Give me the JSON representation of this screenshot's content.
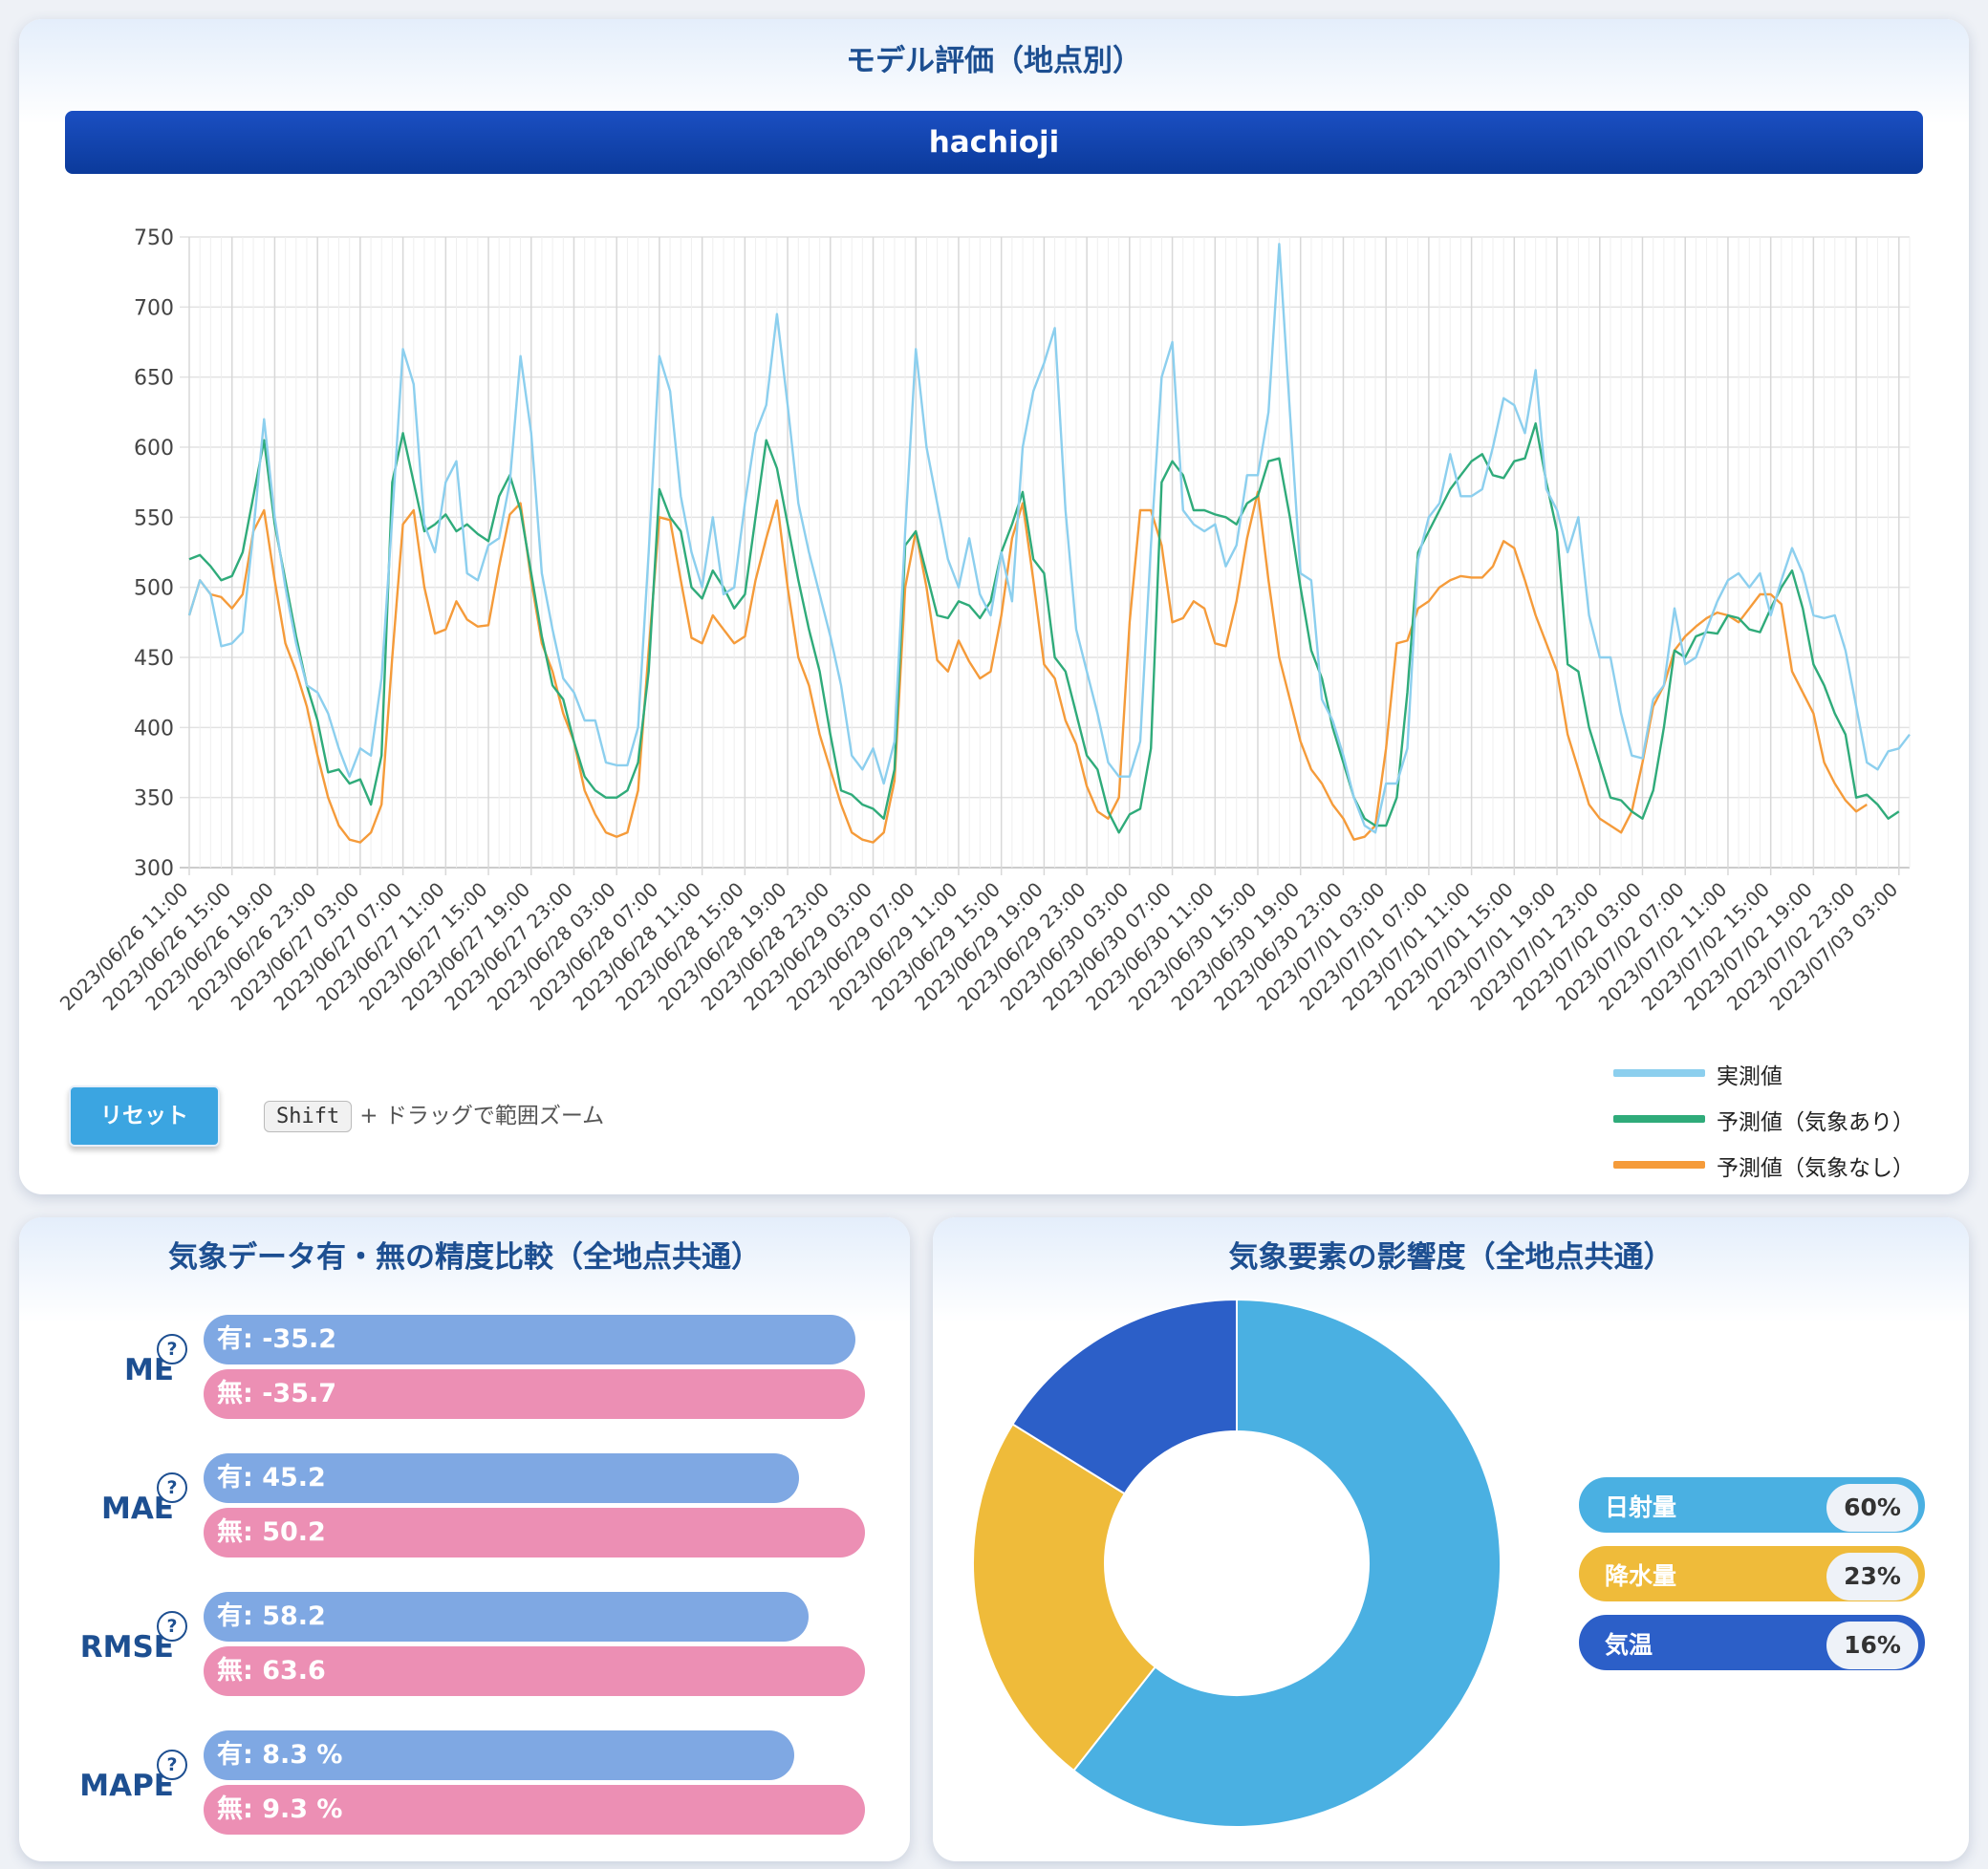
{
  "top_panel": {
    "title": "モデル評価（地点別）",
    "site": "hachioji",
    "reset_label": "リセット",
    "shift_key": "Shift",
    "zoom_hint": "+ ドラッグで範囲ズーム"
  },
  "chart_data": {
    "type": "line",
    "ylim": [
      300,
      750
    ],
    "yticks": [
      300,
      350,
      400,
      450,
      500,
      550,
      600,
      650,
      700,
      750
    ],
    "grid": true,
    "legend_position": "bottom-right",
    "start_time": "2023/06/26 11:00",
    "x_tick_labels": [
      "2023/06/26 11:00",
      "2023/06/26 15:00",
      "2023/06/26 19:00",
      "2023/06/26 23:00",
      "2023/06/27 03:00",
      "2023/06/27 07:00",
      "2023/06/27 11:00",
      "2023/06/27 15:00",
      "2023/06/27 19:00",
      "2023/06/27 23:00",
      "2023/06/28 03:00",
      "2023/06/28 07:00",
      "2023/06/28 11:00",
      "2023/06/28 15:00",
      "2023/06/28 19:00",
      "2023/06/28 23:00",
      "2023/06/29 03:00",
      "2023/06/29 07:00",
      "2023/06/29 11:00",
      "2023/06/29 15:00",
      "2023/06/29 19:00",
      "2023/06/29 23:00",
      "2023/06/30 03:00",
      "2023/06/30 07:00",
      "2023/06/30 11:00",
      "2023/06/30 15:00",
      "2023/06/30 19:00",
      "2023/06/30 23:00",
      "2023/07/01 03:00",
      "2023/07/01 07:00",
      "2023/07/01 11:00",
      "2023/07/01 15:00",
      "2023/07/01 19:00",
      "2023/07/01 23:00",
      "2023/07/02 03:00",
      "2023/07/02 07:00",
      "2023/07/02 11:00",
      "2023/07/02 15:00",
      "2023/07/02 19:00",
      "2023/07/02 23:00",
      "2023/07/03 03:00"
    ],
    "series": [
      {
        "name": "実測値",
        "color": "#8ccfee",
        "values": [
          480,
          505,
          495,
          458,
          460,
          468,
          540,
          620,
          550,
          500,
          460,
          430,
          425,
          410,
          385,
          365,
          385,
          380,
          435,
          550,
          670,
          645,
          545,
          525,
          575,
          590,
          510,
          505,
          530,
          535,
          575,
          665,
          610,
          510,
          470,
          435,
          425,
          405,
          405,
          375,
          373,
          373,
          400,
          525,
          665,
          640,
          565,
          525,
          500,
          550,
          495,
          500,
          560,
          610,
          630,
          695,
          630,
          560,
          525,
          495,
          465,
          430,
          380,
          370,
          385,
          360,
          390,
          540,
          670,
          600,
          560,
          520,
          500,
          535,
          495,
          480,
          525,
          490,
          600,
          640,
          660,
          685,
          555,
          470,
          440,
          410,
          375,
          365,
          365,
          390,
          530,
          650,
          675,
          555,
          545,
          540,
          545,
          515,
          530,
          580,
          580,
          625,
          745,
          625,
          510,
          505,
          420,
          405,
          380,
          350,
          330,
          325,
          360,
          360,
          385,
          520,
          550,
          560,
          595,
          565,
          565,
          570,
          600,
          635,
          630,
          610,
          655,
          570,
          555,
          525,
          550,
          480,
          450,
          450,
          410,
          380,
          378,
          420,
          430,
          485,
          445,
          450,
          470,
          490,
          505,
          510,
          500,
          510,
          480,
          505,
          528,
          510,
          480,
          478,
          480,
          455,
          415,
          375,
          370,
          383,
          385,
          395
        ]
      },
      {
        "name": "予測値（気象あり）",
        "color": "#2fab7a",
        "values": [
          520,
          523,
          515,
          505,
          508,
          525,
          565,
          605,
          545,
          505,
          465,
          430,
          405,
          368,
          370,
          360,
          363,
          345,
          380,
          575,
          610,
          575,
          540,
          545,
          552,
          540,
          545,
          538,
          533,
          565,
          580,
          555,
          510,
          465,
          430,
          420,
          390,
          365,
          355,
          350,
          350,
          355,
          375,
          440,
          570,
          550,
          540,
          500,
          492,
          512,
          500,
          485,
          495,
          550,
          605,
          585,
          545,
          505,
          470,
          440,
          395,
          355,
          352,
          345,
          342,
          335,
          370,
          530,
          540,
          510,
          480,
          478,
          490,
          487,
          478,
          490,
          525,
          545,
          568,
          520,
          510,
          450,
          440,
          410,
          380,
          370,
          340,
          325,
          338,
          342,
          385,
          575,
          590,
          580,
          555,
          555,
          552,
          550,
          545,
          560,
          565,
          590,
          592,
          550,
          500,
          455,
          435,
          400,
          375,
          350,
          335,
          330,
          330,
          350,
          425,
          525,
          540,
          555,
          570,
          580,
          590,
          595,
          580,
          578,
          590,
          592,
          617,
          575,
          540,
          445,
          440,
          400,
          375,
          350,
          348,
          340,
          335,
          355,
          400,
          455,
          450,
          465,
          468,
          467,
          480,
          478,
          470,
          468,
          485,
          500,
          512,
          485,
          445,
          430,
          410,
          395,
          350,
          352,
          345,
          335,
          340
        ]
      },
      {
        "name": "予測値（気象なし）",
        "color": "#f59b3a",
        "values": [
          480,
          505,
          495,
          493,
          485,
          495,
          540,
          555,
          505,
          460,
          440,
          415,
          380,
          350,
          330,
          320,
          318,
          325,
          345,
          450,
          545,
          555,
          500,
          467,
          470,
          490,
          477,
          472,
          473,
          515,
          552,
          560,
          505,
          460,
          440,
          410,
          390,
          355,
          338,
          325,
          322,
          325,
          355,
          455,
          550,
          548,
          505,
          464,
          460,
          480,
          470,
          460,
          465,
          505,
          535,
          562,
          500,
          450,
          430,
          395,
          370,
          345,
          325,
          320,
          318,
          325,
          362,
          500,
          540,
          500,
          448,
          440,
          462,
          447,
          435,
          440,
          480,
          535,
          560,
          505,
          445,
          435,
          405,
          388,
          358,
          340,
          335,
          350,
          475,
          555,
          555,
          530,
          475,
          478,
          490,
          485,
          460,
          458,
          490,
          535,
          568,
          505,
          450,
          420,
          390,
          370,
          360,
          345,
          335,
          320,
          322,
          330,
          385,
          460,
          462,
          485,
          490,
          500,
          505,
          508,
          507,
          507,
          515,
          533,
          528,
          505,
          480,
          460,
          440,
          395,
          370,
          345,
          335,
          330,
          325,
          340,
          375,
          415,
          430,
          455,
          465,
          472,
          478,
          482,
          480,
          475,
          485,
          495,
          495,
          488,
          440,
          425,
          410,
          375,
          360,
          348,
          340,
          345
        ]
      }
    ]
  },
  "metrics_panel": {
    "title": "気象データ有・無の精度比較（全地点共通）",
    "help_glyph": "?",
    "metrics": [
      {
        "name": "ME",
        "with": -35.2,
        "without": -35.7,
        "with_label": "有: -35.2",
        "without_label": "無: -35.7"
      },
      {
        "name": "MAE",
        "with": 45.2,
        "without": 50.2,
        "with_label": "有: 45.2",
        "without_label": "無: 50.2"
      },
      {
        "name": "RMSE",
        "with": 58.2,
        "without": 63.6,
        "with_label": "有: 58.2",
        "without_label": "無: 63.6"
      },
      {
        "name": "MAPE",
        "with": 8.3,
        "without": 9.3,
        "with_label": "有: 8.3 %",
        "without_label": "無: 9.3 %"
      }
    ]
  },
  "influence_panel": {
    "title": "気象要素の影響度（全地点共通）",
    "chart_data": {
      "type": "pie",
      "slices": [
        {
          "name": "日射量",
          "value": 60,
          "label": "60%",
          "color": "#4ab0e2"
        },
        {
          "name": "降水量",
          "value": 23,
          "label": "23%",
          "color": "#efbb3a"
        },
        {
          "name": "気温",
          "value": 16,
          "label": "16%",
          "color": "#2c5fc8"
        }
      ]
    }
  }
}
